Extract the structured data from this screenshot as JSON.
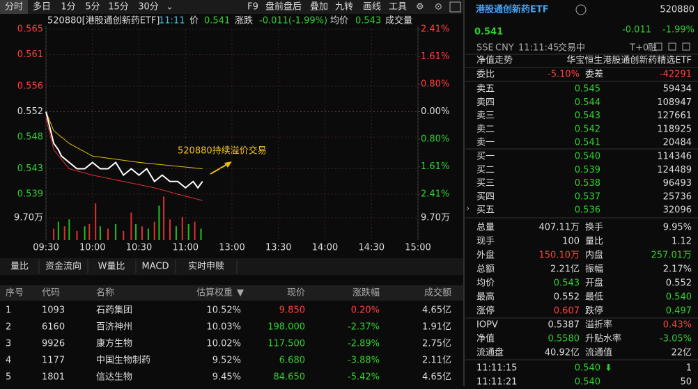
{
  "toolbar": {
    "tabs": [
      "分时",
      "多日",
      "1分",
      "5分",
      "15分",
      "30分"
    ],
    "tools": [
      "F9",
      "盘前盘后",
      "叠加",
      "九转",
      "画线",
      "工具"
    ]
  },
  "chart_header": {
    "code": "520880[港股通创新药ETF]",
    "time": "11:11",
    "price_label": "价",
    "price": "0.541",
    "change_label": "涨跌",
    "change": "-0.011(-1.99%)",
    "avg_label": "均价",
    "avg": "0.543",
    "volume_label": "成交量"
  },
  "chart_data": {
    "type": "line",
    "xlim": [
      0,
      240
    ],
    "xticks": [
      {
        "value": 0,
        "label": "09:30"
      },
      {
        "value": 30,
        "label": "10:00"
      },
      {
        "value": 60,
        "label": "10:30"
      },
      {
        "value": 90,
        "label": "11:00"
      },
      {
        "value": 120,
        "label": "13:00"
      },
      {
        "value": 150,
        "label": "13:30"
      },
      {
        "value": 180,
        "label": "14:00"
      },
      {
        "value": 210,
        "label": "14:30"
      },
      {
        "value": 240,
        "label": "15:00"
      }
    ],
    "ylim": [
      0.539,
      0.565
    ],
    "yticks": [
      0.565,
      0.561,
      0.556,
      0.552,
      0.548,
      0.543,
      0.539
    ],
    "y2lim": [
      -2.41,
      2.41
    ],
    "y2ticks": [
      {
        "value": 2.41,
        "label": "2.41%"
      },
      {
        "value": 1.61,
        "label": "1.61%"
      },
      {
        "value": 0.8,
        "label": "0.80%"
      },
      {
        "value": 0,
        "label": "0.00%"
      },
      {
        "value": -0.8,
        "label": "0.80%"
      },
      {
        "value": -1.61,
        "label": "1.61%"
      },
      {
        "value": -2.41,
        "label": "2.41%"
      }
    ],
    "series": [
      {
        "color": "#e8c000",
        "x": [
          0,
          5,
          15,
          30,
          60,
          101
        ],
        "values": [
          0.552,
          0.549,
          0.547,
          0.545,
          0.544,
          0.543
        ]
      },
      {
        "color": "#e03030",
        "x": [
          0,
          5,
          15,
          30,
          50,
          70,
          85,
          101
        ],
        "values": [
          0.551,
          0.546,
          0.543,
          0.542,
          0.541,
          0.54,
          0.539,
          0.538
        ]
      },
      {
        "color": "#ffffff",
        "x": [
          0,
          3,
          5,
          8,
          10,
          15,
          20,
          25,
          30,
          35,
          40,
          45,
          50,
          55,
          60,
          65,
          70,
          75,
          80,
          85,
          90,
          95,
          98,
          101
        ],
        "values": [
          0.552,
          0.549,
          0.547,
          0.546,
          0.545,
          0.544,
          0.543,
          0.543,
          0.544,
          0.543,
          0.543,
          0.544,
          0.542,
          0.543,
          0.542,
          0.543,
          0.541,
          0.542,
          0.541,
          0.541,
          0.54,
          0.541,
          0.54,
          0.541
        ]
      }
    ],
    "annotation": "520880持续溢价交易",
    "volume": {
      "ylim": [
        0,
        19.4
      ],
      "yticks": [
        {
          "value": 9.7,
          "label": "9.70万"
        }
      ],
      "x": [
        5,
        8,
        12,
        15,
        20,
        25,
        28,
        32,
        35,
        40,
        45,
        50,
        55,
        58,
        62,
        66,
        70,
        73,
        76,
        80,
        84,
        88,
        92,
        96,
        100
      ],
      "values": [
        5,
        8,
        6,
        9,
        4,
        6,
        7,
        16,
        6,
        5,
        7,
        4,
        12,
        7,
        6,
        5,
        8,
        15,
        19,
        9,
        6,
        10,
        7,
        8,
        5
      ],
      "colors": [
        "#e03030",
        "#20c020",
        "#e03030",
        "#20c020",
        "#e03030",
        "#20c020",
        "#e03030",
        "#e03030",
        "#20c020",
        "#e03030",
        "#20c020",
        "#e03030",
        "#e03030",
        "#20c020",
        "#e03030",
        "#20c020",
        "#e03030",
        "#20c020",
        "#e03030",
        "#e03030",
        "#20c020",
        "#e03030",
        "#20c020",
        "#e03030",
        "#20c020"
      ]
    }
  },
  "tabs2": [
    "量比",
    "资金流向",
    "W量比",
    "MACD",
    "实时申赎"
  ],
  "table": {
    "headers": [
      "序号",
      "代码",
      "名称",
      "估算权重",
      "现价",
      "涨跌幅",
      "成交额"
    ],
    "rows": [
      [
        "1",
        "1093",
        "石药集团",
        "10.52%",
        "9.850",
        "0.20%",
        "4.65亿"
      ],
      [
        "2",
        "6160",
        "百济神州",
        "10.03%",
        "198.000",
        "-2.37%",
        "1.91亿"
      ],
      [
        "3",
        "9926",
        "康方生物",
        "10.02%",
        "117.500",
        "-2.89%",
        "2.75亿"
      ],
      [
        "4",
        "1177",
        "中国生物制药",
        "9.52%",
        "6.680",
        "-3.88%",
        "2.11亿"
      ],
      [
        "5",
        "1801",
        "信达生物",
        "9.45%",
        "84.650",
        "-5.42%",
        "4.65亿"
      ]
    ]
  },
  "quote": {
    "name": "港股通创新药ETF",
    "code": "520880",
    "price": "0.541",
    "change": "-0.011",
    "change_pct": "-1.99%",
    "meta": [
      "SSE",
      "CNY",
      "11:11:45",
      "交易中"
    ],
    "t0": "T+0",
    "margin": "融",
    "nav_trend": "净值走势",
    "fund_name": "华宝恒生港股通创新药精选ETF",
    "weibi": [
      "委比",
      "-5.10%",
      "委差",
      "-42291"
    ],
    "asks": [
      [
        "卖五",
        "0.545",
        "59434"
      ],
      [
        "卖四",
        "0.544",
        "108947"
      ],
      [
        "卖三",
        "0.543",
        "127661"
      ],
      [
        "卖二",
        "0.542",
        "118925"
      ],
      [
        "卖一",
        "0.541",
        "20484"
      ]
    ],
    "bids": [
      [
        "买一",
        "0.540",
        "114346"
      ],
      [
        "买二",
        "0.539",
        "124489"
      ],
      [
        "买三",
        "0.538",
        "96493"
      ],
      [
        "买四",
        "0.537",
        "25736"
      ],
      [
        "买五",
        "0.536",
        "32096"
      ]
    ],
    "stats": [
      [
        "总量",
        "407.11万",
        "换手",
        "9.95%"
      ],
      [
        "现手",
        "100",
        "量比",
        "1.12"
      ],
      [
        "外盘",
        "150.10万",
        "内盘",
        "257.01万"
      ],
      [
        "总额",
        "2.21亿",
        "振幅",
        "2.17%"
      ],
      [
        "均价",
        "0.543",
        "开盘",
        "0.552"
      ],
      [
        "最高",
        "0.552",
        "最低",
        "0.540"
      ],
      [
        "涨停",
        "0.607",
        "跌停",
        "0.497"
      ],
      [
        "IOPV",
        "0.5387",
        "溢折率",
        "0.43%"
      ],
      [
        "净值",
        "0.5580",
        "升贴水率",
        "-3.05%"
      ],
      [
        "流通盘",
        "40.92亿",
        "流通值",
        "22亿"
      ]
    ],
    "stat_colors": [
      [
        "#ddd",
        "#ddd"
      ],
      [
        "#ddd",
        "#ddd"
      ],
      [
        "#ff4040",
        "#30d030"
      ],
      [
        "#ddd",
        "#ddd"
      ],
      [
        "#30d030",
        "#ddd"
      ],
      [
        "#ddd",
        "#30d030"
      ],
      [
        "#ff4040",
        "#30d030"
      ],
      [
        "#ddd",
        "#ff4040"
      ],
      [
        "#30d030",
        "#30d030"
      ],
      [
        "#ddd",
        "#ddd"
      ]
    ],
    "ticks": [
      [
        "11:11:15",
        "0.540",
        "1"
      ],
      [
        "11:11:21",
        "0.540",
        "50"
      ]
    ]
  }
}
